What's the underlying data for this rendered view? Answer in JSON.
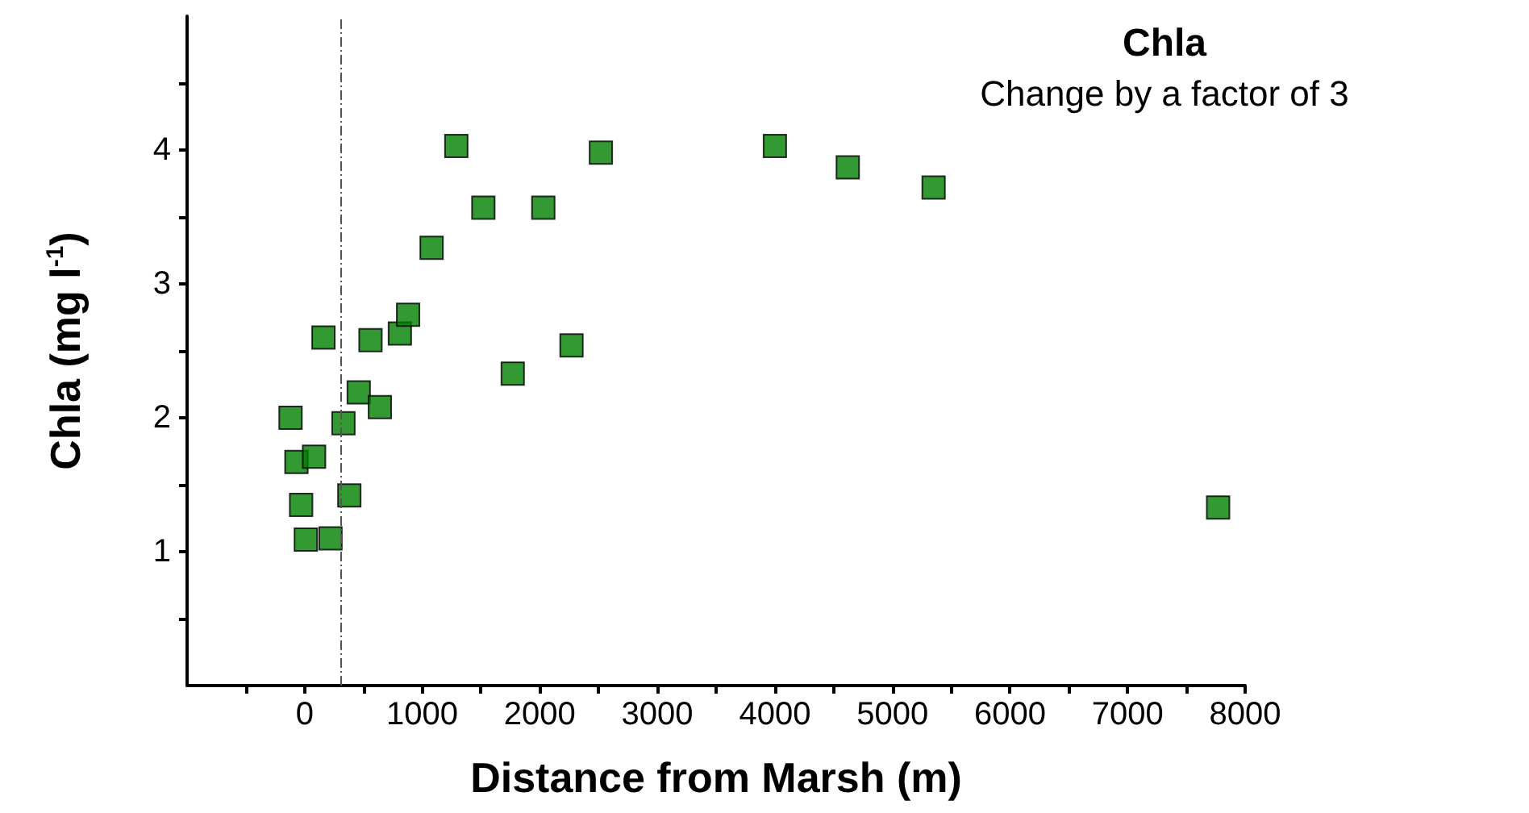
{
  "chart_data": {
    "type": "scatter",
    "title": "Chla",
    "subtitle": "Change by a factor of 3",
    "xlabel": "Distance from Marsh (m)",
    "ylabel": "Chla (mg l$^{-1}$)",
    "x": [
      -120,
      -70,
      -30,
      10,
      80,
      160,
      220,
      330,
      380,
      460,
      560,
      640,
      810,
      880,
      1080,
      1290,
      1520,
      1770,
      2030,
      2270,
      2520,
      4000,
      4620,
      5350,
      7770
    ],
    "series": [
      {
        "color": "#008000",
        "values": [
          2.0,
          1.67,
          1.35,
          1.09,
          1.71,
          2.6,
          1.1,
          1.96,
          1.42,
          2.19,
          2.58,
          2.08,
          2.63,
          2.77,
          3.27,
          4.03,
          3.57,
          2.33,
          3.57,
          2.54,
          3.98,
          4.03,
          3.87,
          3.72,
          1.33
        ]
      }
    ],
    "marker": "square",
    "xlim": [
      -1000,
      8000
    ],
    "ylim": [
      0,
      5
    ],
    "xticks": [
      {
        "value": -500,
        "label": null
      },
      0,
      {
        "value": 500,
        "label": null
      },
      1000,
      {
        "value": 1500,
        "label": null
      },
      2000,
      {
        "value": 2500,
        "label": null
      },
      3000,
      {
        "value": 3500,
        "label": null
      },
      4000,
      {
        "value": 4500,
        "label": null
      },
      5000,
      {
        "value": 5500,
        "label": null
      },
      6000,
      {
        "value": 6500,
        "label": null
      },
      7000,
      {
        "value": 7500,
        "label": null
      },
      8000
    ],
    "yticks": [
      {
        "value": 0.5,
        "label": null
      },
      1,
      {
        "value": 1.5,
        "label": null
      },
      2,
      {
        "value": 2.5,
        "label": null
      },
      3,
      {
        "value": 3.5,
        "label": null
      },
      4,
      {
        "value": 4.5,
        "label": null
      }
    ],
    "ref_lines": [
      {
        "axis": "x",
        "value": 300,
        "color": "#555555",
        "line_style": "dashdot"
      }
    ],
    "grid": false,
    "legend": false
  }
}
